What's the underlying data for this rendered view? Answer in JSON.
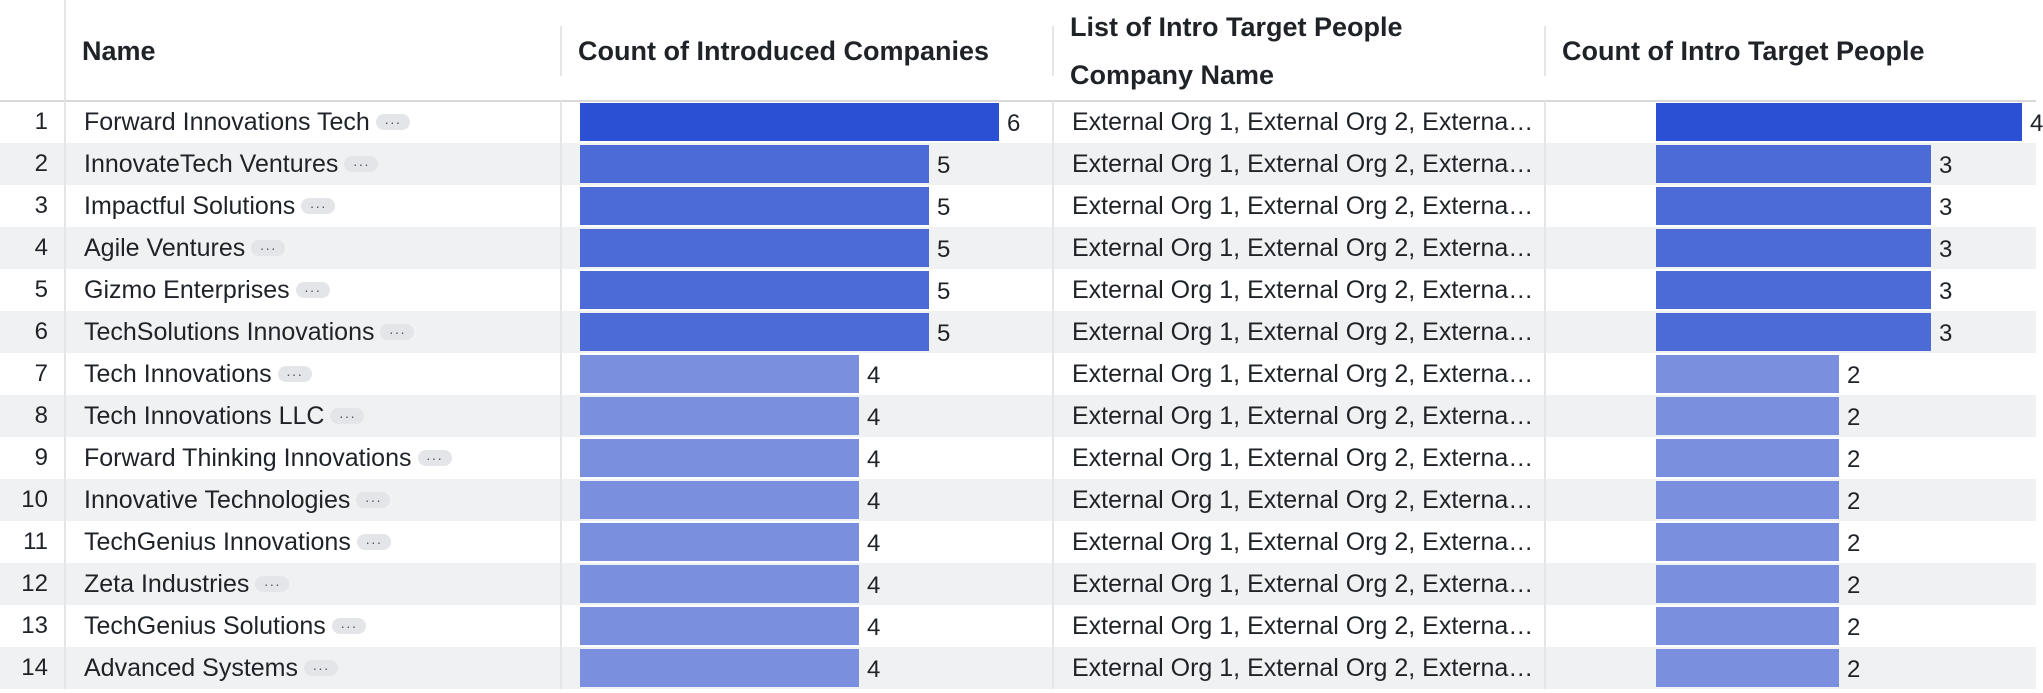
{
  "colors": {
    "bar_max": "#2b50d4",
    "bar_high": "#4d6bd6",
    "bar_low": "#7a8fdd",
    "row_alt": "#eff1f2"
  },
  "columns": {
    "name": "Name",
    "companies": "Count of Introduced Companies",
    "list_line1": "List of Intro Target People",
    "list_line2": "Company Name",
    "people": "Count of Intro Target People"
  },
  "more_icon": "···",
  "rows": [
    {
      "idx": "1",
      "name": "Forward Innovations Tech",
      "companies": 6,
      "list": "External Org 1, External Org 2, Externa…",
      "people": 4
    },
    {
      "idx": "2",
      "name": "InnovateTech Ventures",
      "companies": 5,
      "list": "External Org 1, External Org 2, Externa…",
      "people": 3
    },
    {
      "idx": "3",
      "name": "Impactful Solutions",
      "companies": 5,
      "list": "External Org 1, External Org 2, Externa…",
      "people": 3
    },
    {
      "idx": "4",
      "name": "Agile Ventures",
      "companies": 5,
      "list": "External Org 1, External Org 2, Externa…",
      "people": 3
    },
    {
      "idx": "5",
      "name": "Gizmo Enterprises",
      "companies": 5,
      "list": "External Org 1, External Org 2, Externa…",
      "people": 3
    },
    {
      "idx": "6",
      "name": "TechSolutions Innovations",
      "companies": 5,
      "list": "External Org 1, External Org 2, Externa…",
      "people": 3
    },
    {
      "idx": "7",
      "name": "Tech Innovations",
      "companies": 4,
      "list": "External Org 1, External Org 2, Externa…",
      "people": 2
    },
    {
      "idx": "8",
      "name": "Tech Innovations LLC",
      "companies": 4,
      "list": "External Org 1, External Org 2, Externa…",
      "people": 2
    },
    {
      "idx": "9",
      "name": "Forward Thinking Innovations",
      "companies": 4,
      "list": "External Org 1, External Org 2, Externa…",
      "people": 2
    },
    {
      "idx": "10",
      "name": "Innovative Technologies",
      "companies": 4,
      "list": "External Org 1, External Org 2, Externa…",
      "people": 2
    },
    {
      "idx": "11",
      "name": "TechGenius Innovations",
      "companies": 4,
      "list": "External Org 1, External Org 2, Externa…",
      "people": 2
    },
    {
      "idx": "12",
      "name": "Zeta Industries",
      "companies": 4,
      "list": "External Org 1, External Org 2, Externa…",
      "people": 2
    },
    {
      "idx": "13",
      "name": "TechGenius Solutions",
      "companies": 4,
      "list": "External Org 1, External Org 2, Externa…",
      "people": 2
    },
    {
      "idx": "14",
      "name": "Advanced Systems",
      "companies": 4,
      "list": "External Org 1, External Org 2, Externa…",
      "people": 2
    }
  ]
}
